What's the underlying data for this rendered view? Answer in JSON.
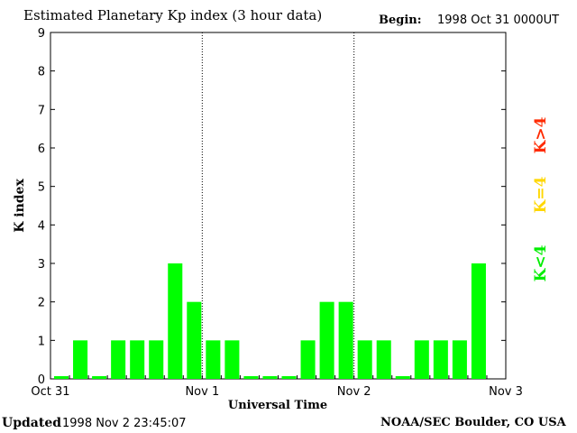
{
  "header": {
    "title": "Estimated Planetary Kp index (3 hour data)",
    "begin_label": "Begin:",
    "begin_value": "1998 Oct 31 0000UT"
  },
  "footer": {
    "updated_label": "Updated",
    "updated_value": "1998 Nov  2 23:45:07",
    "credit": "NOAA/SEC Boulder, CO USA"
  },
  "legend": {
    "high": "K>4",
    "mid": "K=4",
    "low": "K<4"
  },
  "colors": {
    "low": "#00ff00",
    "mid": "#ffd700",
    "high": "#ff2a00",
    "axis": "#000000"
  },
  "chart_data": {
    "type": "bar",
    "title": "Estimated Planetary Kp index (3 hour data)",
    "xlabel": "Universal Time",
    "ylabel": "K index",
    "ylim": [
      0,
      9
    ],
    "yticks": [
      "0",
      "1",
      "2",
      "3",
      "4",
      "5",
      "6",
      "7",
      "8",
      "9"
    ],
    "xticks": [
      "Oct 31",
      "Nov 1",
      "Nov 2",
      "Nov 3"
    ],
    "day_dividers": true,
    "legend_position": "right",
    "intervals_per_day": 8,
    "values": [
      0,
      1,
      0,
      1,
      1,
      1,
      3,
      2,
      1,
      1,
      0,
      0,
      0,
      1,
      2,
      2,
      1,
      1,
      0,
      1,
      1,
      1,
      3
    ]
  }
}
